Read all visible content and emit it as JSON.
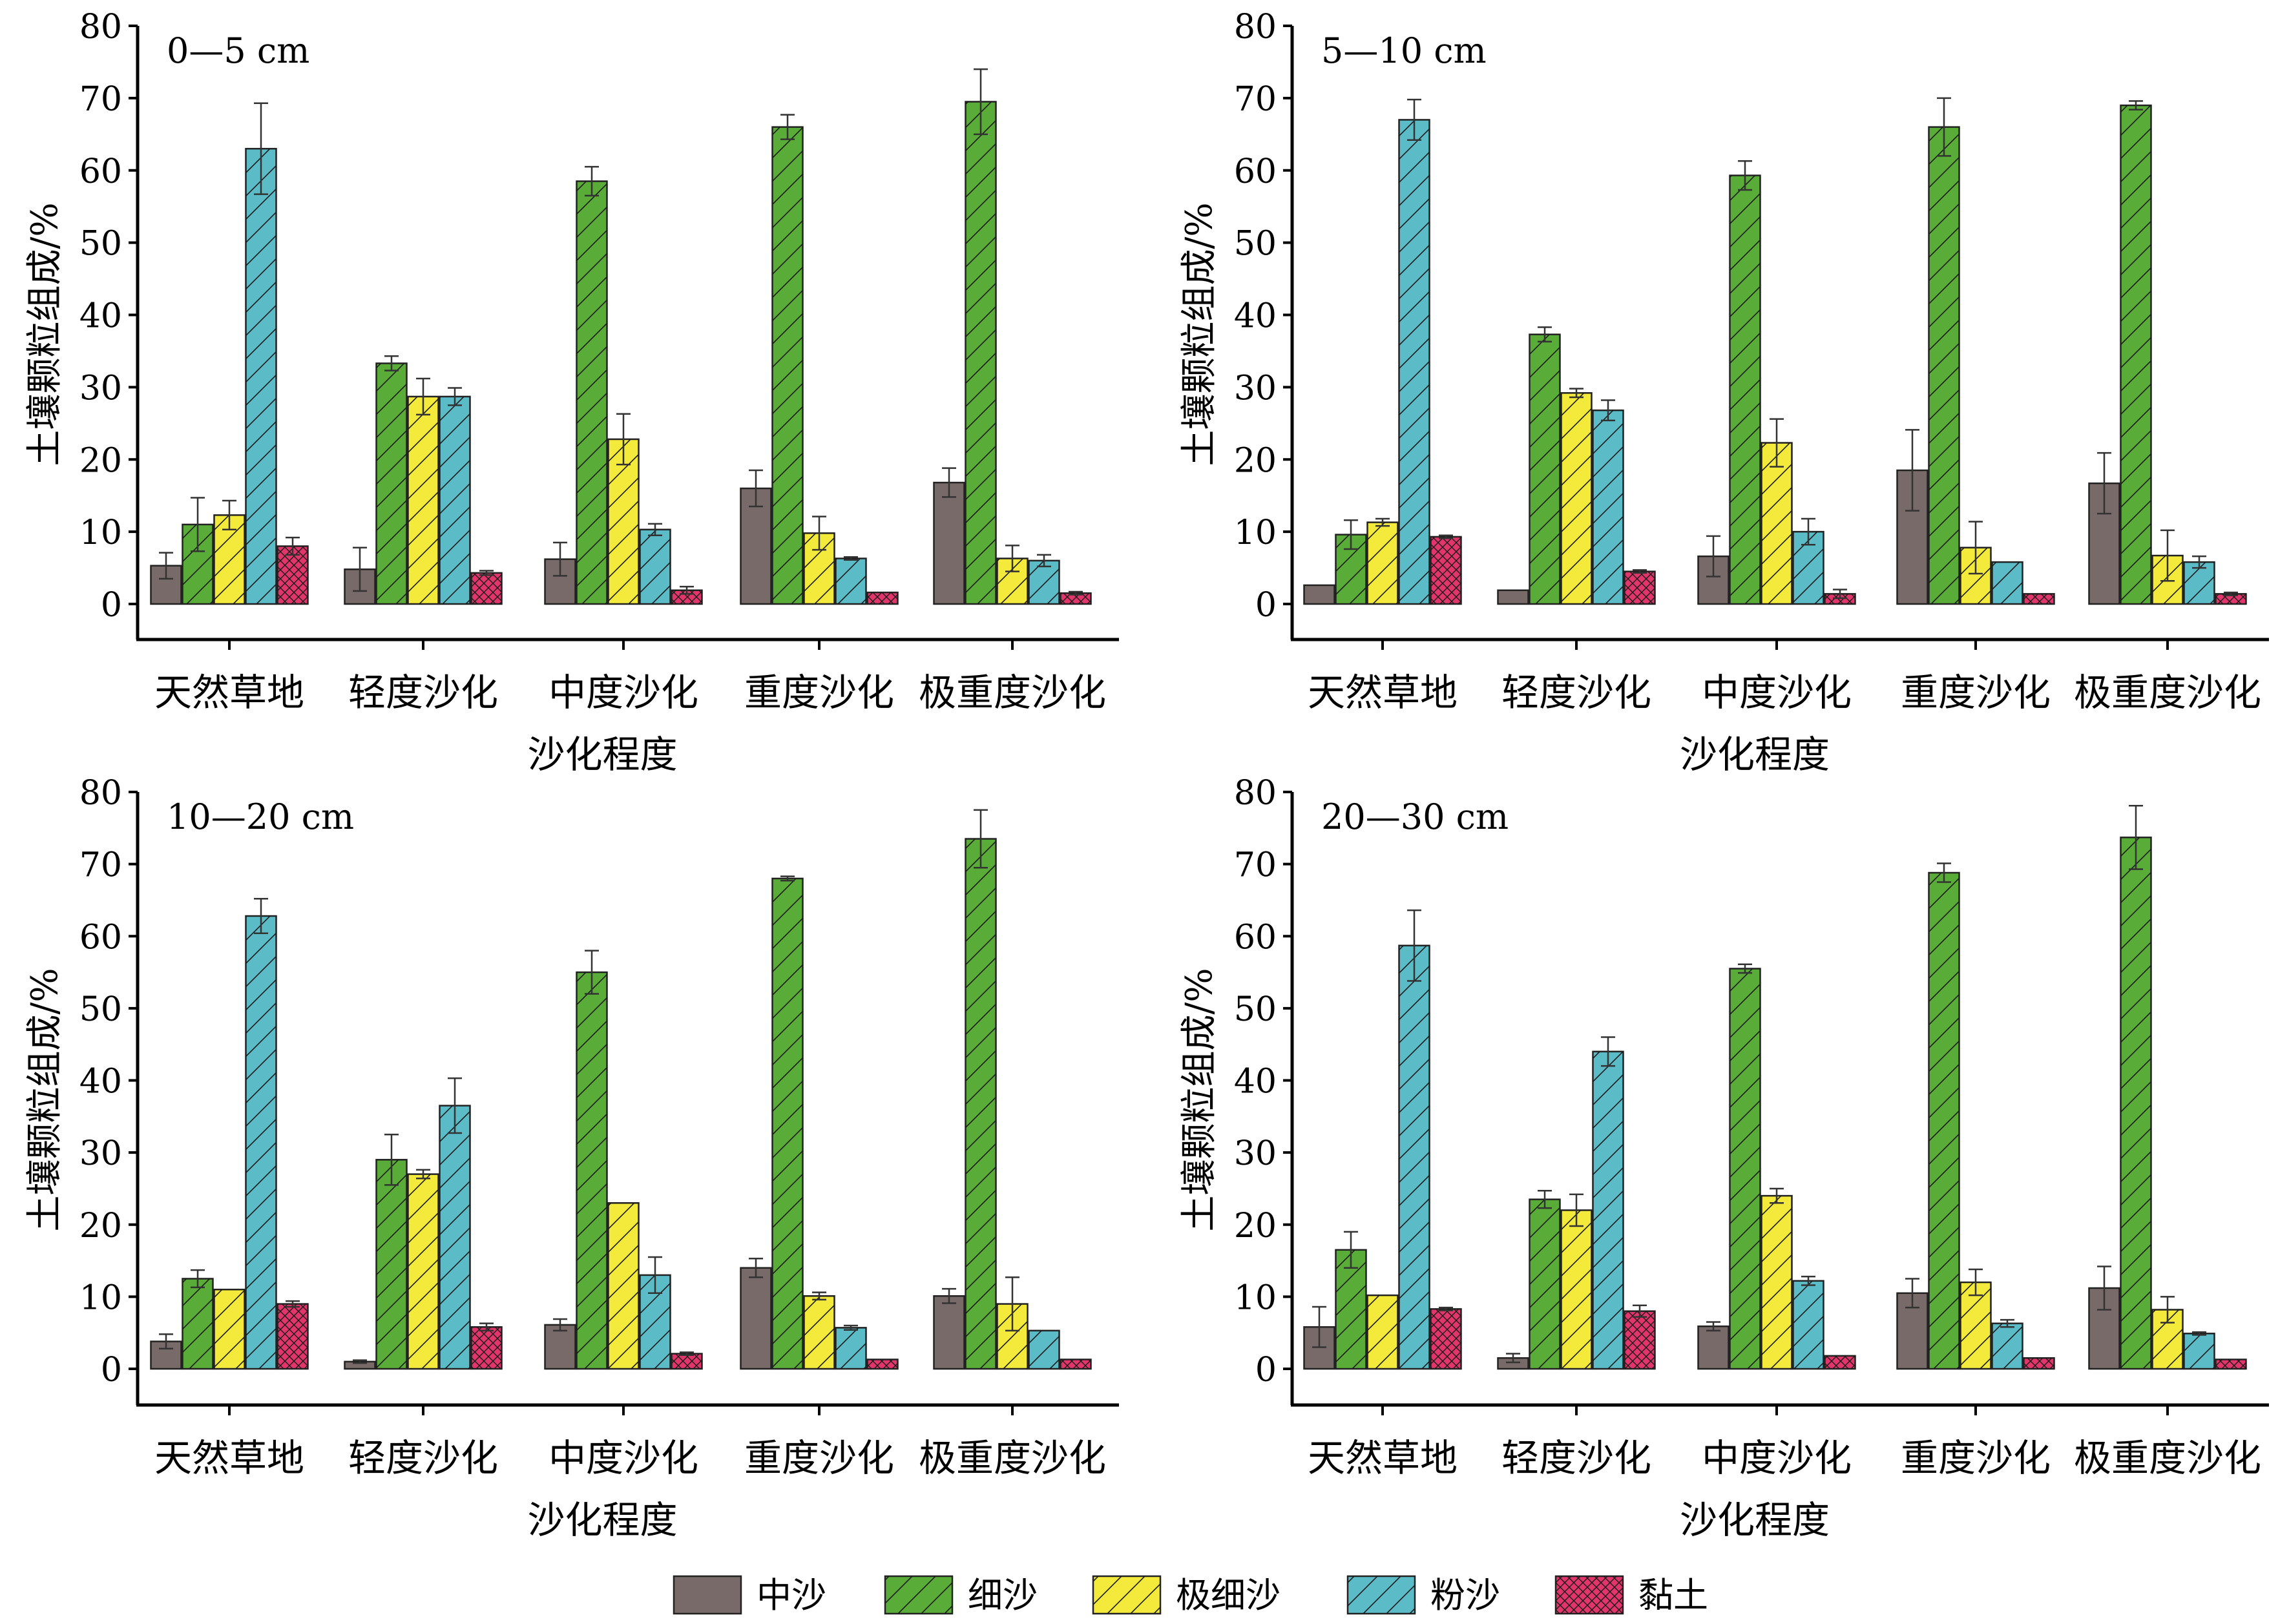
{
  "figure": {
    "x_axis_title": "沙化程度",
    "y_axis_title": "土壤颗粒组成/%"
  },
  "legend": [
    {
      "name": "中沙",
      "color": "#776a68",
      "pattern": "none"
    },
    {
      "name": "细沙",
      "color": "#5aac38",
      "pattern": "diagonal"
    },
    {
      "name": "极细沙",
      "color": "#f3ea3b",
      "pattern": "diagonal"
    },
    {
      "name": "粉沙",
      "color": "#5bbcc8",
      "pattern": "diagonal"
    },
    {
      "name": "黏土",
      "color": "#e2356c",
      "pattern": "crosshatch"
    }
  ],
  "chart_data": [
    {
      "type": "bar",
      "title": "0—5 cm",
      "xlabel": "沙化程度",
      "ylabel": "土壤颗粒组成/%",
      "ylim": [
        0,
        80
      ],
      "yticks": [
        0,
        10,
        20,
        30,
        40,
        50,
        60,
        70,
        80
      ],
      "categories": [
        "天然草地",
        "轻度沙化",
        "中度沙化",
        "重度沙化",
        "极重度沙化"
      ],
      "series": [
        {
          "name": "中沙",
          "values": [
            5.3,
            4.8,
            6.2,
            16.0,
            16.8
          ],
          "errors": [
            1.8,
            3.0,
            2.3,
            2.5,
            2.0
          ]
        },
        {
          "name": "细沙",
          "values": [
            11.0,
            33.3,
            58.5,
            66.0,
            69.5
          ],
          "errors": [
            3.7,
            1.0,
            2.0,
            1.7,
            4.5
          ]
        },
        {
          "name": "极细沙",
          "values": [
            12.3,
            28.7,
            22.8,
            9.8,
            6.3
          ],
          "errors": [
            2.0,
            2.5,
            3.5,
            2.3,
            1.8
          ]
        },
        {
          "name": "粉沙",
          "values": [
            63.0,
            28.7,
            10.3,
            6.3,
            6.0
          ],
          "errors": [
            6.3,
            1.2,
            0.8,
            0.2,
            0.8
          ]
        },
        {
          "name": "黏土",
          "values": [
            8.0,
            4.3,
            1.9,
            1.6,
            1.5
          ],
          "errors": [
            1.2,
            0.3,
            0.5,
            0.1,
            0.2
          ]
        }
      ]
    },
    {
      "type": "bar",
      "title": "5—10 cm",
      "xlabel": "沙化程度",
      "ylabel": "土壤颗粒组成/%",
      "ylim": [
        0,
        80
      ],
      "yticks": [
        0,
        10,
        20,
        30,
        40,
        50,
        60,
        70,
        80
      ],
      "categories": [
        "天然草地",
        "轻度沙化",
        "中度沙化",
        "重度沙化",
        "极重度沙化"
      ],
      "series": [
        {
          "name": "中沙",
          "values": [
            2.6,
            1.9,
            6.6,
            18.5,
            16.7
          ],
          "errors": [
            0.1,
            0.1,
            2.8,
            5.6,
            4.2
          ]
        },
        {
          "name": "细沙",
          "values": [
            9.6,
            37.3,
            59.3,
            66.0,
            69.0
          ],
          "errors": [
            2.0,
            1.0,
            2.0,
            4.0,
            0.6
          ]
        },
        {
          "name": "极细沙",
          "values": [
            11.3,
            29.2,
            22.3,
            7.8,
            6.7
          ],
          "errors": [
            0.5,
            0.6,
            3.3,
            3.6,
            3.5
          ]
        },
        {
          "name": "粉沙",
          "values": [
            67.0,
            26.8,
            10.0,
            5.8,
            5.8
          ],
          "errors": [
            2.8,
            1.4,
            1.8,
            0.1,
            0.8
          ]
        },
        {
          "name": "黏土",
          "values": [
            9.3,
            4.5,
            1.4,
            1.4,
            1.4
          ],
          "errors": [
            0.2,
            0.2,
            0.6,
            0.1,
            0.2
          ]
        }
      ]
    },
    {
      "type": "bar",
      "title": "10—20 cm",
      "xlabel": "沙化程度",
      "ylabel": "土壤颗粒组成/%",
      "ylim": [
        0,
        80
      ],
      "yticks": [
        0,
        10,
        20,
        30,
        40,
        50,
        60,
        70,
        80
      ],
      "categories": [
        "天然草地",
        "轻度沙化",
        "中度沙化",
        "重度沙化",
        "极重度沙化"
      ],
      "series": [
        {
          "name": "中沙",
          "values": [
            3.8,
            1.0,
            6.1,
            14.0,
            10.1
          ],
          "errors": [
            1.0,
            0.2,
            0.8,
            1.3,
            1.0
          ]
        },
        {
          "name": "细沙",
          "values": [
            12.5,
            29.0,
            55.0,
            68.0,
            73.5
          ],
          "errors": [
            1.2,
            3.5,
            3.0,
            0.3,
            4.0
          ]
        },
        {
          "name": "极细沙",
          "values": [
            11.0,
            27.0,
            23.0,
            10.1,
            9.0
          ],
          "errors": [
            0.1,
            0.6,
            0.1,
            0.5,
            3.7
          ]
        },
        {
          "name": "粉沙",
          "values": [
            62.8,
            36.5,
            13.0,
            5.7,
            5.3
          ],
          "errors": [
            2.4,
            3.8,
            2.5,
            0.3,
            0.1
          ]
        },
        {
          "name": "黏土",
          "values": [
            9.0,
            5.8,
            2.1,
            1.3,
            1.3
          ],
          "errors": [
            0.4,
            0.5,
            0.2,
            0.1,
            0.1
          ]
        }
      ]
    },
    {
      "type": "bar",
      "title": "20—30 cm",
      "xlabel": "沙化程度",
      "ylabel": "土壤颗粒组成/%",
      "ylim": [
        0,
        80
      ],
      "yticks": [
        0,
        10,
        20,
        30,
        40,
        50,
        60,
        70,
        80
      ],
      "categories": [
        "天然草地",
        "轻度沙化",
        "中度沙化",
        "重度沙化",
        "极重度沙化"
      ],
      "series": [
        {
          "name": "中沙",
          "values": [
            5.8,
            1.5,
            5.9,
            10.5,
            11.2
          ],
          "errors": [
            2.8,
            0.6,
            0.6,
            2.0,
            3.0
          ]
        },
        {
          "name": "细沙",
          "values": [
            16.5,
            23.5,
            55.5,
            68.8,
            73.7
          ],
          "errors": [
            2.5,
            1.2,
            0.6,
            1.3,
            4.4
          ]
        },
        {
          "name": "极细沙",
          "values": [
            10.2,
            22.0,
            24.0,
            12.0,
            8.2
          ],
          "errors": [
            0.1,
            2.2,
            1.0,
            1.8,
            1.8
          ]
        },
        {
          "name": "粉沙",
          "values": [
            58.7,
            44.0,
            12.2,
            6.3,
            4.9
          ],
          "errors": [
            4.9,
            2.0,
            0.6,
            0.5,
            0.2
          ]
        },
        {
          "name": "黏土",
          "values": [
            8.3,
            8.0,
            1.8,
            1.5,
            1.3
          ],
          "errors": [
            0.2,
            0.8,
            0.1,
            0.1,
            0.1
          ]
        }
      ]
    }
  ]
}
